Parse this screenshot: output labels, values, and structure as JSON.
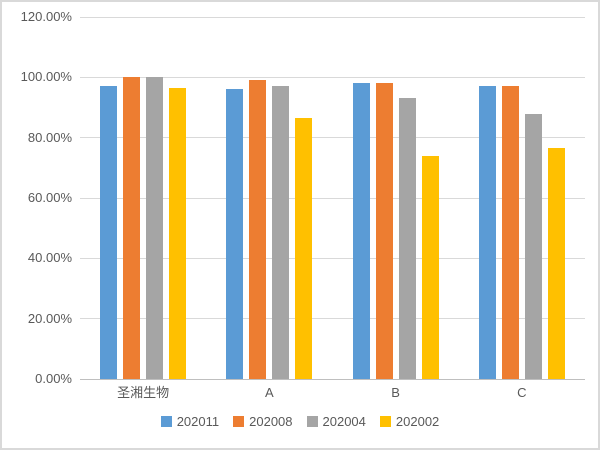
{
  "chart_data": {
    "type": "bar",
    "title": "",
    "categories": [
      "圣湘生物",
      "A",
      "B",
      "C"
    ],
    "series": [
      {
        "name": "202011",
        "color": "#5B9BD5",
        "values": [
          97,
          96,
          98,
          97
        ]
      },
      {
        "name": "202008",
        "color": "#ED7D31",
        "values": [
          100,
          99,
          98,
          97
        ]
      },
      {
        "name": "202004",
        "color": "#A5A5A5",
        "values": [
          100,
          97,
          93,
          88
        ]
      },
      {
        "name": "202002",
        "color": "#FFC000",
        "values": [
          96.5,
          86.5,
          74,
          76.5
        ]
      }
    ],
    "xlabel": "",
    "ylabel": "",
    "ylim": [
      0,
      120
    ],
    "ytick_step": 20,
    "ytick_labels": [
      "0.00%",
      "20.00%",
      "40.00%",
      "60.00%",
      "80.00%",
      "100.00%",
      "120.00%"
    ],
    "grid": true,
    "legend_position": "bottom"
  },
  "style": {
    "text_color": "#595959",
    "gridline_color": "#D9D9D9",
    "axis_line_color": "#BFBFBF",
    "background": "#FFFFFF",
    "frame_border_color": "#D9D9D9"
  }
}
